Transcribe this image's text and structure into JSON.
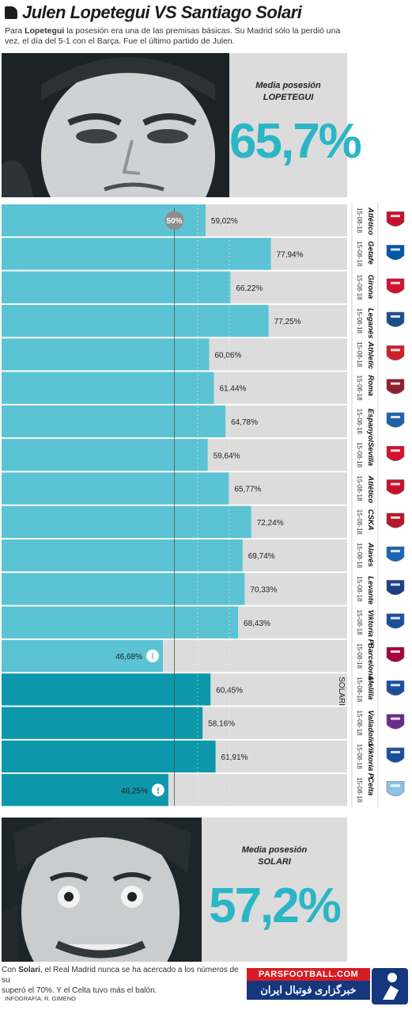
{
  "header": {
    "title": "Julen Lopetegui VS Santiago Solari",
    "intro_pre": "Para ",
    "intro_bold": "Lopetegui",
    "intro_post": " la posesión era una de las premisas básicas. Su Madrid sólo la perdió una vez, el día del 5-1 con el Barça. Fue el último partido de Julen."
  },
  "lopetegui": {
    "label_line1": "Media posesión",
    "label_line2": "LOPETEGUI",
    "value": "65,7%"
  },
  "solari": {
    "label_line1": "Media posesión",
    "label_line2": "SOLARI",
    "value": "57,2%"
  },
  "chart_data": {
    "type": "bar",
    "orientation": "horizontal",
    "reference_label": "50%",
    "reference_value": 50,
    "section_label": "SOLARI",
    "xlim": [
      0,
      100
    ],
    "categories": [
      "Atlético",
      "Getafe",
      "Girona",
      "Leganés",
      "Athletic",
      "Roma",
      "Espanyol",
      "Sevilla",
      "Atlético",
      "CSKA",
      "Alavés",
      "Levante",
      "Viktoria P.",
      "Barcelona",
      "Melilla",
      "Valladolid",
      "Viktoria P.",
      "Celta"
    ],
    "dates": [
      "15-08-18",
      "15-08-18",
      "15-08-18",
      "15-08-18",
      "15-08-18",
      "15-08-18",
      "15-08-18",
      "15-08-18",
      "15-08-18",
      "15-08-18",
      "15-08-18",
      "15-08-18",
      "15-08-18",
      "15-08-18",
      "15-08-18",
      "15-08-18",
      "15-08-18",
      "15-08-18"
    ],
    "values": [
      59.02,
      77.94,
      66.22,
      77.25,
      60.06,
      61.44,
      64.78,
      59.64,
      65.77,
      72.24,
      69.74,
      70.33,
      68.43,
      46.68,
      60.45,
      58.16,
      61.91,
      48.25
    ],
    "value_labels": [
      "59,02%",
      "77,94%",
      "66,22%",
      "77,25%",
      "60,06%",
      "61,44%",
      "64,78%",
      "59,64%",
      "65,77%",
      "72,24%",
      "69,74%",
      "70,33%",
      "68,43%",
      "46,68%",
      "60,45%",
      "58,16%",
      "61,91%",
      "48,25%"
    ],
    "coach": [
      "Lopetegui",
      "Lopetegui",
      "Lopetegui",
      "Lopetegui",
      "Lopetegui",
      "Lopetegui",
      "Lopetegui",
      "Lopetegui",
      "Lopetegui",
      "Lopetegui",
      "Lopetegui",
      "Lopetegui",
      "Lopetegui",
      "Lopetegui",
      "Solari",
      "Solari",
      "Solari",
      "Solari"
    ],
    "below_50_flag": [
      false,
      false,
      false,
      false,
      false,
      false,
      false,
      false,
      false,
      false,
      false,
      false,
      false,
      true,
      false,
      false,
      false,
      true
    ],
    "colors": {
      "lopetegui": "#5bc3d3",
      "solari": "#0c97ab",
      "track": "#dcdcdc",
      "flag": "#ffffff"
    },
    "crest_colors": [
      "#c8102e",
      "#0058a8",
      "#d2122e",
      "#1a4f8b",
      "#d11f2a",
      "#8e1f2f",
      "#1e62ad",
      "#d2122e",
      "#c8102e",
      "#b5172d",
      "#1a64b5",
      "#1b3e88",
      "#1a4fa0",
      "#a50044",
      "#1a4fa0",
      "#6a2c8c",
      "#1a4fa0",
      "#8ac3e6"
    ]
  },
  "footer": {
    "outro_pre": "Con ",
    "outro_bold": "Solari",
    "outro_post": ", el Real Madrid nunca se ha acercado a los números de su ",
    "outro_line2": "superó el 70%. Y el Celta tuvo más el balón.",
    "credit": "INFOGRAFÍA: R. GIMENO"
  },
  "watermark": {
    "site": "PARSFOOTBALL.COM",
    "tagline": "خبرگزاری فوتبال ایران"
  }
}
